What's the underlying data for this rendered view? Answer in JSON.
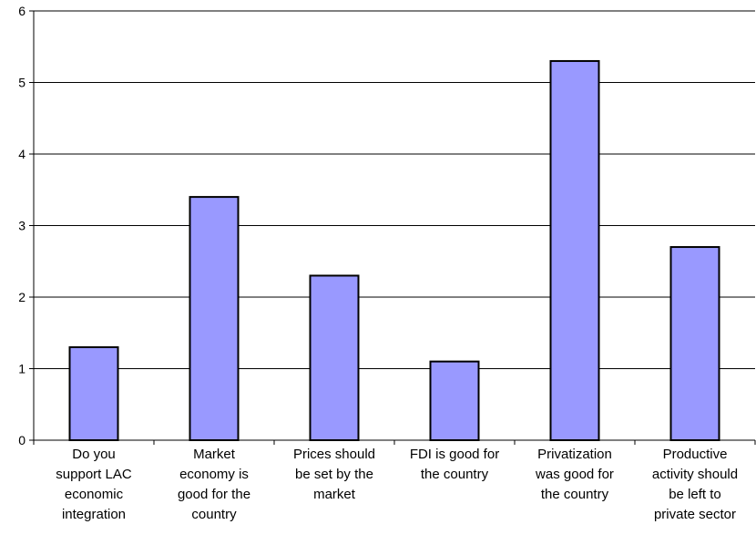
{
  "chart_data": {
    "type": "bar",
    "title": "",
    "xlabel": "",
    "ylabel": "",
    "ylim": [
      0,
      6
    ],
    "yticks": [
      0,
      1,
      2,
      3,
      4,
      5,
      6
    ],
    "grid": true,
    "legend": "none",
    "bar_color": "#9999ff",
    "bar_border": "#000000",
    "categories": [
      [
        "Do you",
        "support LAC",
        "economic",
        "integration"
      ],
      [
        "Market",
        "economy is",
        "good for the",
        "country"
      ],
      [
        "Prices should",
        "be set by the",
        "market"
      ],
      [
        "FDI is good for",
        "the country"
      ],
      [
        "Privatization",
        "was good for",
        "the country"
      ],
      [
        "Productive",
        "activity should",
        "be left to",
        "private sector"
      ]
    ],
    "values": [
      1.3,
      3.4,
      2.3,
      1.1,
      5.3,
      2.7
    ]
  }
}
